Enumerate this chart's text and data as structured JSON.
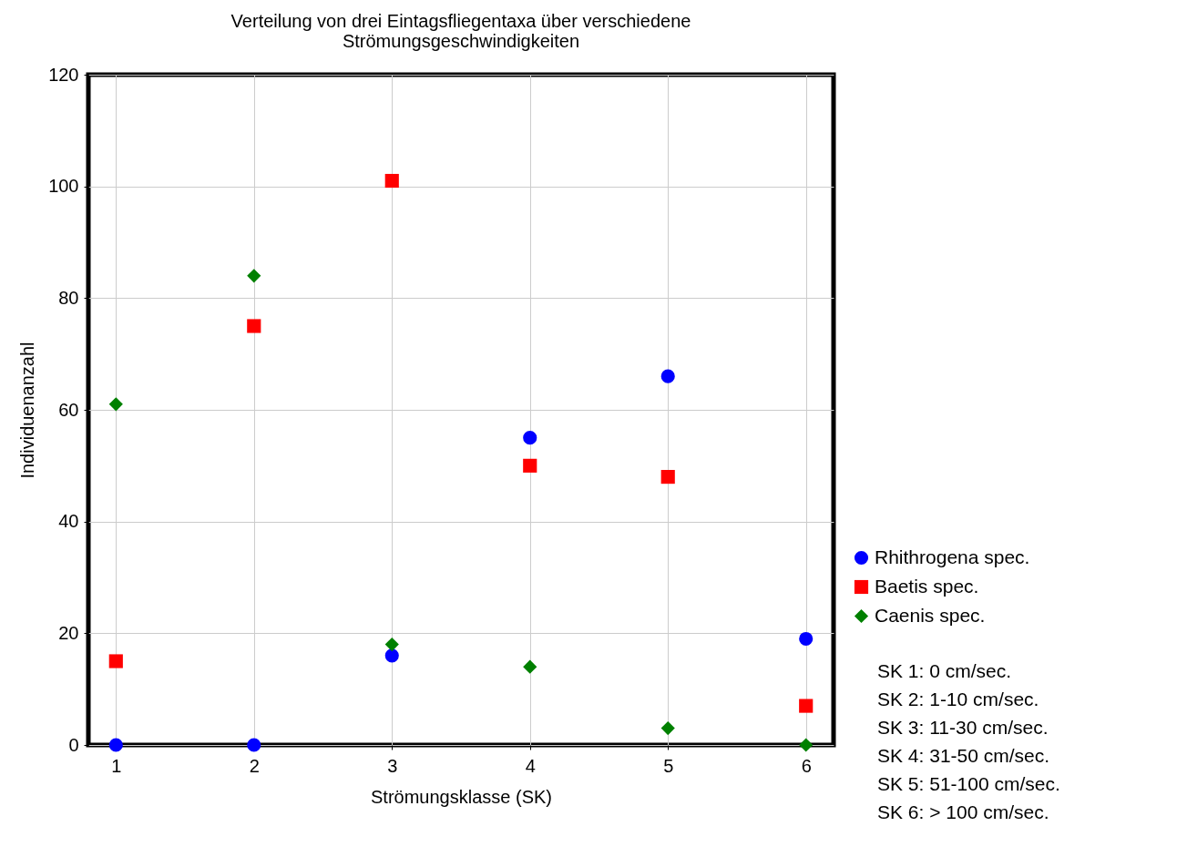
{
  "chart_data": {
    "type": "scatter",
    "title": "Verteilung von drei Eintagsfliegentaxa über verschiedene Strömungsgeschwindigkeiten",
    "xlabel": "Strömungsklasse (SK)",
    "ylabel": "Individuenanzahl",
    "x": [
      1,
      2,
      3,
      4,
      5,
      6
    ],
    "series": [
      {
        "name": "Rhithrogena spec.",
        "color": "#0000ff",
        "marker": "circle",
        "values": [
          0,
          0,
          16,
          55,
          66,
          19
        ]
      },
      {
        "name": "Baetis spec.",
        "color": "#ff0000",
        "marker": "square",
        "values": [
          15,
          75,
          101,
          50,
          48,
          7
        ]
      },
      {
        "name": "Caenis spec.",
        "color": "#008000",
        "marker": "diamond",
        "values": [
          61,
          84,
          18,
          14,
          3,
          0
        ]
      }
    ],
    "xlim": [
      0.8,
      6.2
    ],
    "xticks": [
      1,
      2,
      3,
      4,
      5,
      6
    ],
    "ylim": [
      0,
      120
    ],
    "yticks": [
      0,
      20,
      40,
      60,
      80,
      100,
      120
    ],
    "grid": true,
    "legend": "right",
    "annotations": [
      "SK 1: 0 cm/sec.",
      "SK 2: 1-10 cm/sec.",
      "SK 3: 11-30 cm/sec.",
      "SK 4: 31-50 cm/sec.",
      "SK 5: 51-100 cm/sec.",
      "SK 6: > 100 cm/sec."
    ]
  }
}
